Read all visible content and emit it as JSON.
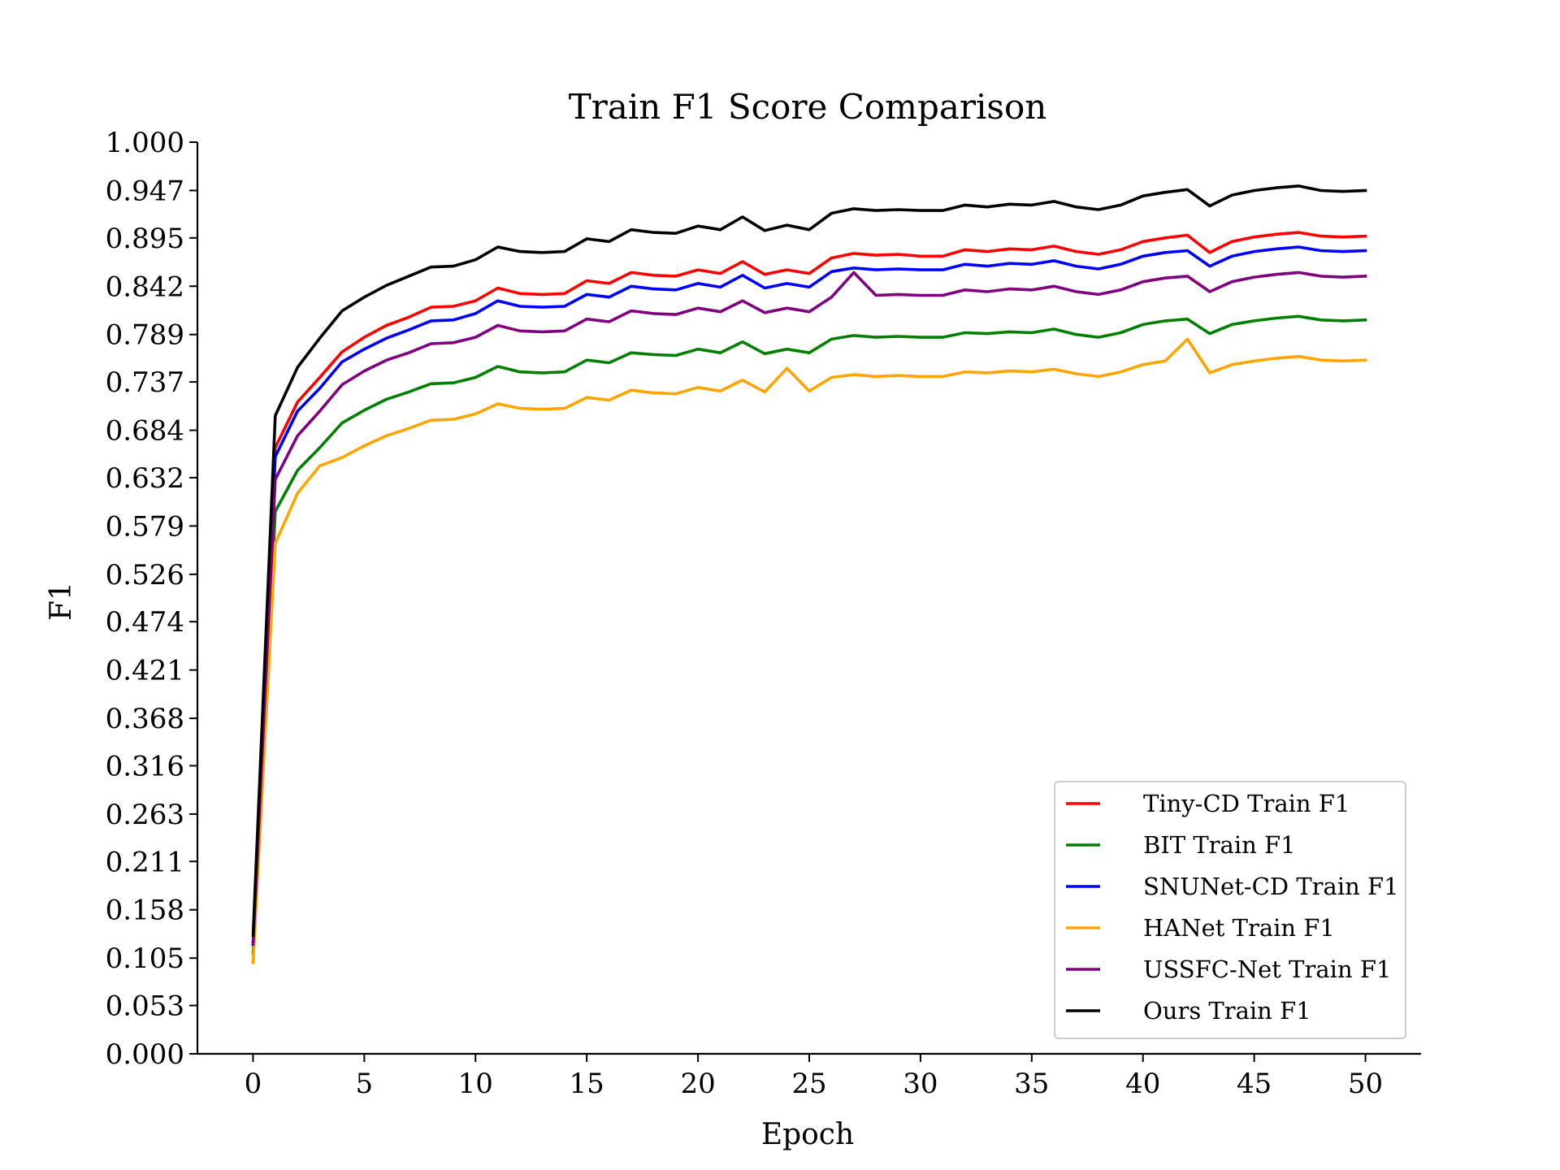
{
  "chart_data": {
    "type": "line",
    "title": "Train F1 Score Comparison",
    "xlabel": "Epoch",
    "ylabel": "F1",
    "xlim": [
      -2.5,
      52.5
    ],
    "ylim": [
      0,
      1
    ],
    "xticks": [
      0,
      5,
      10,
      15,
      20,
      25,
      30,
      35,
      40,
      45,
      50
    ],
    "yticks": [
      0.0,
      0.053,
      0.105,
      0.158,
      0.211,
      0.263,
      0.316,
      0.368,
      0.421,
      0.474,
      0.526,
      0.579,
      0.632,
      0.684,
      0.737,
      0.789,
      0.842,
      0.895,
      0.947,
      1.0
    ],
    "ytick_labels": [
      "0.000",
      "0.053",
      "0.105",
      "0.158",
      "0.211",
      "0.263",
      "0.316",
      "0.368",
      "0.421",
      "0.474",
      "0.526",
      "0.579",
      "0.632",
      "0.684",
      "0.737",
      "0.789",
      "0.842",
      "0.895",
      "0.947",
      "1.000"
    ],
    "legend_position": "lower-right",
    "grid": false,
    "x": [
      0,
      1,
      2,
      3,
      4,
      5,
      6,
      7,
      8,
      9,
      10,
      11,
      12,
      13,
      14,
      15,
      16,
      17,
      18,
      19,
      20,
      21,
      22,
      23,
      24,
      25,
      26,
      27,
      28,
      29,
      30,
      31,
      32,
      33,
      34,
      35,
      36,
      37,
      38,
      39,
      40,
      41,
      42,
      43,
      44,
      45,
      46,
      47,
      48,
      49,
      50
    ],
    "series": [
      {
        "name": "Tiny-CD Train F1",
        "color": "#ff0000",
        "values": [
          0.12,
          0.665,
          0.715,
          0.742,
          0.77,
          0.786,
          0.799,
          0.808,
          0.819,
          0.82,
          0.826,
          0.84,
          0.834,
          0.833,
          0.834,
          0.848,
          0.845,
          0.857,
          0.854,
          0.853,
          0.86,
          0.856,
          0.869,
          0.855,
          0.86,
          0.856,
          0.873,
          0.878,
          0.876,
          0.877,
          0.875,
          0.875,
          0.882,
          0.88,
          0.883,
          0.882,
          0.886,
          0.88,
          0.877,
          0.882,
          0.891,
          0.895,
          0.898,
          0.879,
          0.891,
          0.896,
          0.899,
          0.901,
          0.897,
          0.896,
          0.897
        ]
      },
      {
        "name": "BIT Train F1",
        "color": "#008000",
        "values": [
          0.11,
          0.595,
          0.64,
          0.665,
          0.692,
          0.706,
          0.718,
          0.726,
          0.735,
          0.736,
          0.742,
          0.754,
          0.748,
          0.747,
          0.748,
          0.761,
          0.758,
          0.769,
          0.767,
          0.766,
          0.773,
          0.769,
          0.781,
          0.768,
          0.773,
          0.769,
          0.784,
          0.788,
          0.786,
          0.787,
          0.786,
          0.786,
          0.791,
          0.79,
          0.792,
          0.791,
          0.795,
          0.789,
          0.786,
          0.791,
          0.8,
          0.804,
          0.806,
          0.79,
          0.8,
          0.804,
          0.807,
          0.809,
          0.805,
          0.804,
          0.805
        ]
      },
      {
        "name": "SNUNet-CD Train F1",
        "color": "#0000ff",
        "values": [
          0.12,
          0.655,
          0.705,
          0.73,
          0.759,
          0.773,
          0.785,
          0.794,
          0.804,
          0.805,
          0.812,
          0.826,
          0.82,
          0.819,
          0.82,
          0.833,
          0.83,
          0.842,
          0.839,
          0.838,
          0.845,
          0.841,
          0.854,
          0.84,
          0.845,
          0.841,
          0.858,
          0.862,
          0.86,
          0.861,
          0.86,
          0.86,
          0.866,
          0.864,
          0.867,
          0.866,
          0.87,
          0.864,
          0.861,
          0.866,
          0.875,
          0.879,
          0.881,
          0.864,
          0.875,
          0.88,
          0.883,
          0.885,
          0.881,
          0.88,
          0.881
        ]
      },
      {
        "name": "HANet Train F1",
        "color": "#ffa500",
        "values": [
          0.1,
          0.56,
          0.615,
          0.645,
          0.654,
          0.667,
          0.678,
          0.686,
          0.695,
          0.696,
          0.702,
          0.713,
          0.708,
          0.707,
          0.708,
          0.72,
          0.717,
          0.728,
          0.725,
          0.724,
          0.731,
          0.727,
          0.739,
          0.726,
          0.752,
          0.727,
          0.742,
          0.745,
          0.743,
          0.744,
          0.743,
          0.743,
          0.748,
          0.747,
          0.749,
          0.748,
          0.751,
          0.746,
          0.743,
          0.748,
          0.756,
          0.76,
          0.784,
          0.747,
          0.756,
          0.76,
          0.763,
          0.765,
          0.761,
          0.76,
          0.761
        ]
      },
      {
        "name": "USSFC-Net Train F1",
        "color": "#800080",
        "values": [
          0.12,
          0.63,
          0.678,
          0.705,
          0.734,
          0.749,
          0.761,
          0.769,
          0.779,
          0.78,
          0.786,
          0.799,
          0.793,
          0.792,
          0.793,
          0.806,
          0.803,
          0.815,
          0.812,
          0.811,
          0.818,
          0.814,
          0.826,
          0.813,
          0.818,
          0.814,
          0.83,
          0.857,
          0.832,
          0.833,
          0.832,
          0.832,
          0.838,
          0.836,
          0.839,
          0.838,
          0.842,
          0.836,
          0.833,
          0.838,
          0.847,
          0.851,
          0.853,
          0.836,
          0.847,
          0.852,
          0.855,
          0.857,
          0.853,
          0.852,
          0.853
        ]
      },
      {
        "name": "Ours Train F1",
        "color": "#000000",
        "values": [
          0.13,
          0.7,
          0.753,
          0.785,
          0.815,
          0.83,
          0.843,
          0.853,
          0.863,
          0.864,
          0.871,
          0.885,
          0.88,
          0.879,
          0.88,
          0.894,
          0.891,
          0.904,
          0.901,
          0.9,
          0.908,
          0.904,
          0.918,
          0.903,
          0.909,
          0.904,
          0.922,
          0.927,
          0.925,
          0.926,
          0.925,
          0.925,
          0.931,
          0.929,
          0.932,
          0.931,
          0.935,
          0.929,
          0.926,
          0.931,
          0.941,
          0.945,
          0.948,
          0.93,
          0.942,
          0.947,
          0.95,
          0.952,
          0.947,
          0.946,
          0.947
        ]
      }
    ]
  }
}
